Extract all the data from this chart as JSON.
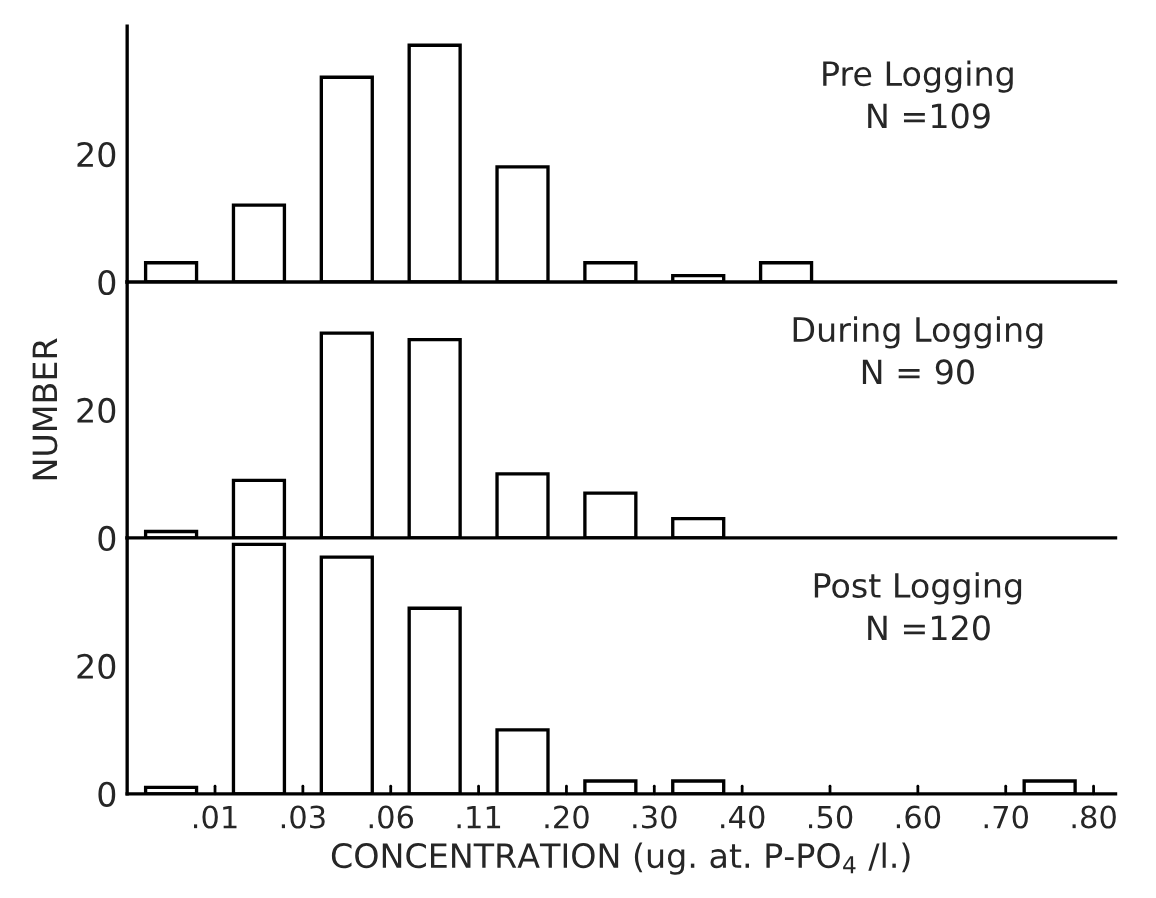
{
  "chart_data": [
    {
      "type": "bar",
      "categories": [
        null,
        null,
        null,
        null,
        null,
        null,
        null,
        null,
        null,
        null,
        null
      ],
      "values": [
        3,
        12,
        32,
        37,
        18,
        3,
        1,
        3,
        0,
        0,
        0
      ],
      "color": "#ffffff",
      "ylim": [
        0,
        40
      ],
      "yticks": [
        0,
        20
      ],
      "grid": false,
      "title": "Pre Logging\n  N =109"
    },
    {
      "type": "bar",
      "categories": [
        null,
        null,
        null,
        null,
        null,
        null,
        null,
        null,
        null,
        null,
        null
      ],
      "values": [
        1,
        9,
        32,
        31,
        10,
        7,
        3,
        0,
        0,
        0,
        0
      ],
      "color": "#ffffff",
      "ylim": [
        0,
        40
      ],
      "yticks": [
        0,
        20
      ],
      "grid": false,
      "ylabel": "NUMBER",
      "title": "During Logging\nN = 90"
    },
    {
      "type": "bar",
      "categories": [
        null,
        null,
        null,
        null,
        null,
        null,
        null,
        null,
        null,
        null,
        null
      ],
      "values": [
        1,
        39,
        37,
        29,
        10,
        2,
        2,
        0,
        0,
        0,
        2
      ],
      "color": "#ffffff",
      "ylim": [
        0,
        40
      ],
      "yticks": [
        0,
        20
      ],
      "grid": false,
      "xlabel": "CONCENTRATION (ug. at. P-PO$_{4}$ /l.)",
      "title": "Post Logging\n  N =120",
      "annotations": [
        ".01",
        ".03",
        ".06",
        ".11",
        ".20",
        ".30",
        ".40",
        ".50",
        ".60",
        ".70",
        ".80"
      ]
    }
  ]
}
